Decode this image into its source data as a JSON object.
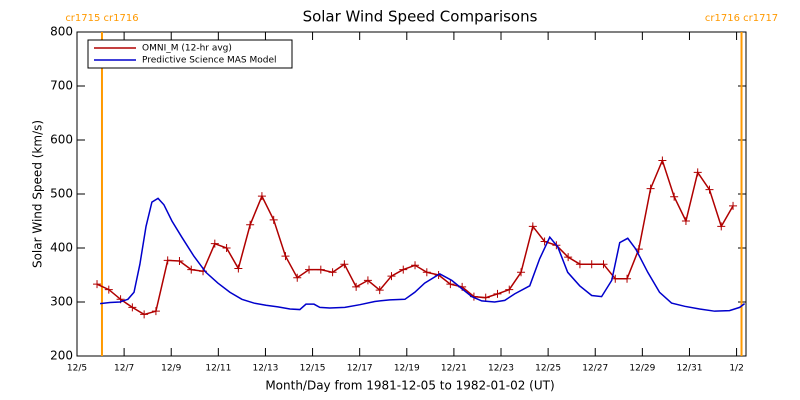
{
  "chart_data": {
    "type": "line",
    "title": "Solar Wind Speed Comparisons",
    "x_label": "Month/Day from 1981-12-05 to 1982-01-02 (UT)",
    "y_label": "Solar Wind Speed (km/s)",
    "xlim": [
      0,
      28.4
    ],
    "ylim": [
      200,
      800
    ],
    "xticks": [
      {
        "value": 0,
        "label": "12/5"
      },
      {
        "value": 2,
        "label": "12/7"
      },
      {
        "value": 4,
        "label": "12/9"
      },
      {
        "value": 6,
        "label": "12/11"
      },
      {
        "value": 8,
        "label": "12/13"
      },
      {
        "value": 10,
        "label": "12/15"
      },
      {
        "value": 12,
        "label": "12/17"
      },
      {
        "value": 14,
        "label": "12/19"
      },
      {
        "value": 16,
        "label": "12/21"
      },
      {
        "value": 18,
        "label": "12/23"
      },
      {
        "value": 20,
        "label": "12/25"
      },
      {
        "value": 22,
        "label": "12/27"
      },
      {
        "value": 24,
        "label": "12/29"
      },
      {
        "value": 26,
        "label": "12/31"
      },
      {
        "value": 28,
        "label": "1/2"
      }
    ],
    "yticks": [
      200,
      300,
      400,
      500,
      600,
      700,
      800
    ],
    "legend": "top-left",
    "series": [
      {
        "name": "OMNI_M (12-hr avg)",
        "color": "#b00000",
        "marker": "plus",
        "x": [
          0.85,
          1.35,
          1.85,
          2.35,
          2.85,
          3.35,
          3.85,
          4.35,
          4.85,
          5.35,
          5.85,
          6.35,
          6.85,
          7.35,
          7.85,
          8.35,
          8.85,
          9.35,
          9.85,
          10.35,
          10.85,
          11.35,
          11.85,
          12.35,
          12.85,
          13.35,
          13.85,
          14.35,
          14.85,
          15.35,
          15.85,
          16.35,
          16.85,
          17.35,
          17.85,
          18.35,
          18.85,
          19.35,
          19.85,
          20.35,
          20.85,
          21.35,
          21.85,
          22.35,
          22.85,
          23.35,
          23.85,
          24.35,
          24.85,
          25.35,
          25.85,
          26.35,
          26.85,
          27.35,
          27.85
        ],
        "values": [
          333,
          323,
          305,
          290,
          277,
          283,
          377,
          376,
          360,
          357,
          408,
          400,
          362,
          443,
          496,
          452,
          385,
          345,
          360,
          360,
          355,
          370,
          328,
          340,
          322,
          348,
          360,
          368,
          355,
          350,
          333,
          328,
          310,
          308,
          315,
          323,
          355,
          440,
          412,
          405,
          383,
          370,
          370,
          370,
          343,
          343,
          398,
          510,
          562,
          495,
          450,
          540,
          508,
          440,
          478
        ]
      },
      {
        "name": "Predictive Science MAS Model",
        "color": "#0000cc",
        "marker": "none",
        "x": [
          0.98,
          1.4,
          1.82,
          2.16,
          2.42,
          2.67,
          2.93,
          3.18,
          3.44,
          3.69,
          4.03,
          4.45,
          4.96,
          5.47,
          5.98,
          6.49,
          7.0,
          7.51,
          8.02,
          8.53,
          9.04,
          9.46,
          9.72,
          10.06,
          10.31,
          10.73,
          11.37,
          12.01,
          12.64,
          13.28,
          13.92,
          14.34,
          14.76,
          15.4,
          15.91,
          16.33,
          16.76,
          17.18,
          17.73,
          18.16,
          18.58,
          19.22,
          19.64,
          20.07,
          20.41,
          20.83,
          21.34,
          21.85,
          22.27,
          22.7,
          23.04,
          23.38,
          23.72,
          24.23,
          24.73,
          25.24,
          25.8,
          26.43,
          27.07,
          27.7,
          28.13,
          28.34
        ],
        "values": [
          297,
          299,
          300,
          305,
          318,
          370,
          440,
          485,
          492,
          480,
          450,
          420,
          385,
          355,
          335,
          318,
          305,
          298,
          294,
          291,
          287,
          286,
          296,
          296,
          290,
          289,
          290,
          295,
          301,
          304,
          305,
          318,
          335,
          352,
          340,
          325,
          310,
          302,
          300,
          303,
          315,
          330,
          380,
          420,
          402,
          355,
          330,
          312,
          310,
          340,
          410,
          418,
          398,
          355,
          318,
          298,
          292,
          287,
          283,
          284,
          290,
          297
        ]
      }
    ],
    "markers": {
      "color": "#ff9900",
      "lines": [
        {
          "x": 1.06,
          "label": "cr1715 cr1716"
        },
        {
          "x": 28.21,
          "label": "cr1716 cr1717"
        }
      ]
    }
  }
}
